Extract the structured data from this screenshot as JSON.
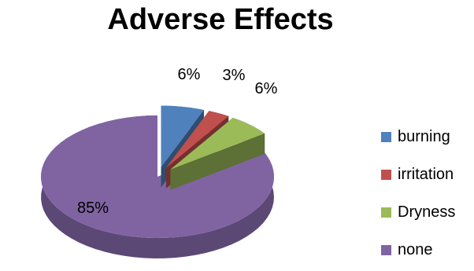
{
  "chart_data": {
    "type": "pie",
    "title": "Adverse Effects",
    "categories": [
      "burning",
      "irritation",
      "Dryness",
      "none"
    ],
    "values": [
      6,
      3,
      6,
      85
    ],
    "labels": [
      "6%",
      "3%",
      "6%",
      "85%"
    ],
    "colors": [
      "#4F81BD",
      "#C0504D",
      "#9BBB59",
      "#8064A2"
    ],
    "legend_position": "right",
    "style": "3d-exploded"
  }
}
